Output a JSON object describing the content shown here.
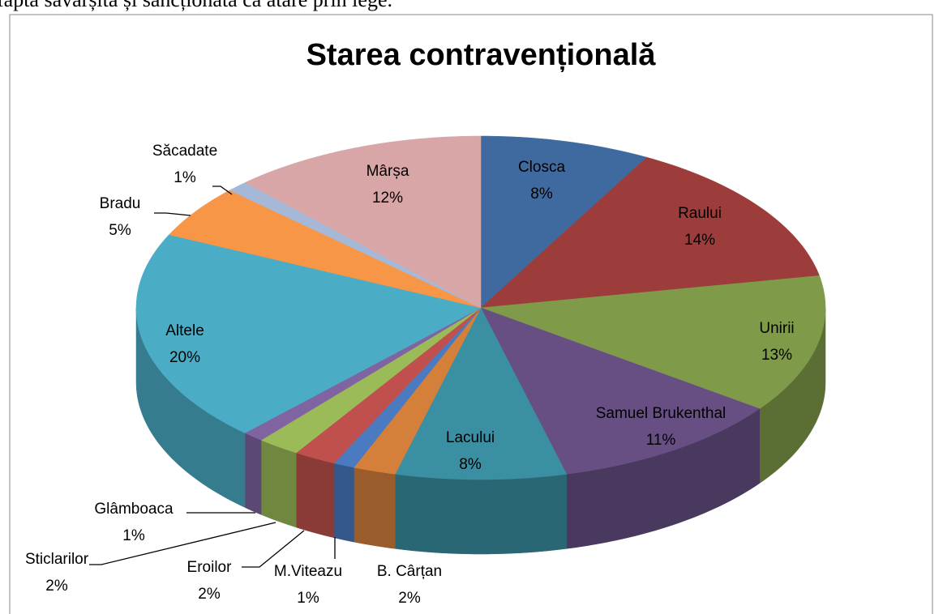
{
  "page_text": "fapta săvârșită și sancționată ca atare prin lege.",
  "chart_data": {
    "type": "pie3d",
    "title": "Starea contravențională",
    "categories": [
      "Closca",
      "Raului",
      "Unirii",
      "Samuel Brukenthal",
      "Lacului",
      "B. Cârțan",
      "M.Viteazu",
      "Eroilor",
      "Sticlarilor",
      "Glâmboaca",
      "Altele",
      "Bradu",
      "Săcadate",
      "Mârșa"
    ],
    "values": [
      8,
      14,
      13,
      11,
      8,
      2,
      1,
      2,
      2,
      1,
      20,
      5,
      1,
      12
    ],
    "value_labels": [
      "8%",
      "14%",
      "13%",
      "11%",
      "8%",
      "2%",
      "1%",
      "2%",
      "2%",
      "1%",
      "20%",
      "5%",
      "1%",
      "12%"
    ],
    "colors": [
      "#3f6aa0",
      "#9c3d3b",
      "#7f9a48",
      "#674f84",
      "#3a8fa3",
      "#d5803a",
      "#4a7ac0",
      "#c0504d",
      "#9bbb59",
      "#8064a2",
      "#4bacc6",
      "#f79646",
      "#a5b8d8",
      "#d8a6a6"
    ]
  }
}
